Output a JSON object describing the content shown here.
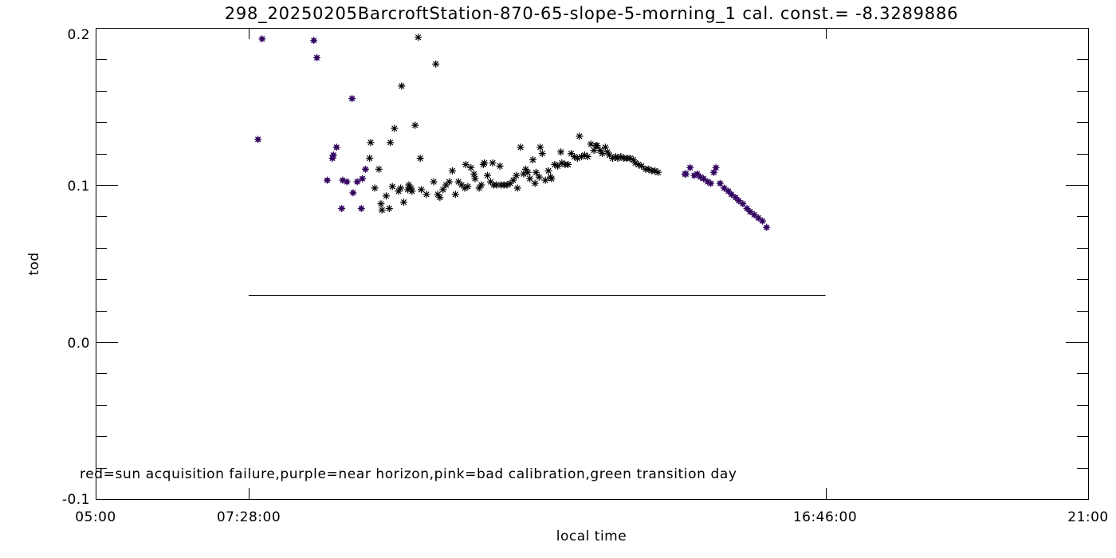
{
  "chart_data": {
    "type": "scatter",
    "title": "298_20250205BarcroftStation-870-65-slope-5-morning_1 cal. const.= -8.3289886",
    "xlabel": "local time",
    "ylabel": "tod",
    "xlim_hours": [
      5,
      21
    ],
    "ylim": [
      -0.1,
      0.2
    ],
    "x_tick_labels": [
      "05:00",
      "07:28:00",
      "16:46:00",
      "21:00"
    ],
    "x_tick_hours": [
      5,
      7.4667,
      16.7667,
      21
    ],
    "y_tick_labels": [
      "-0.1",
      "0.0",
      "0.1",
      "0.2"
    ],
    "y_tick_values": [
      -0.1,
      0.0,
      0.1,
      0.2
    ],
    "grid": false,
    "annotation": "red=sun acquisition failure,purple=near horizon,pink=bad calibration,green transition day",
    "colors": {
      "normal": "#000000",
      "near_horizon": "#7b1fd6"
    },
    "reference_line": {
      "x": [
        "07:28:00",
        "16:46:00"
      ],
      "y": 0.03
    },
    "series": [
      {
        "flag": "near_horizon",
        "color": "#7b1fd6",
        "marker": "asterisk",
        "points": [
          [
            "07:37",
            0.129
          ],
          [
            "07:41",
            0.193
          ],
          [
            "08:31",
            0.192
          ],
          [
            "08:34",
            0.181
          ],
          [
            "08:44",
            0.103
          ],
          [
            "08:49",
            0.117
          ],
          [
            "08:50",
            0.119
          ],
          [
            "08:53",
            0.124
          ],
          [
            "08:58",
            0.085
          ],
          [
            "08:59",
            0.103
          ],
          [
            "09:03",
            0.102
          ],
          [
            "09:08",
            0.155
          ],
          [
            "09:09",
            0.095
          ],
          [
            "09:13",
            0.102
          ],
          [
            "09:17",
            0.085
          ],
          [
            "09:18",
            0.104
          ],
          [
            "09:21",
            0.11
          ],
          [
            "14:30",
            0.107
          ],
          [
            "14:31",
            0.107
          ],
          [
            "14:35",
            0.111
          ],
          [
            "14:39",
            0.106
          ],
          [
            "14:42",
            0.107
          ],
          [
            "14:45",
            0.105
          ],
          [
            "14:48",
            0.104
          ],
          [
            "14:52",
            0.102
          ],
          [
            "14:55",
            0.101
          ],
          [
            "14:58",
            0.108
          ],
          [
            "15:00",
            0.111
          ],
          [
            "15:04",
            0.101
          ],
          [
            "15:08",
            0.098
          ],
          [
            "15:12",
            0.096
          ],
          [
            "15:15",
            0.094
          ],
          [
            "15:19",
            0.092
          ],
          [
            "15:22",
            0.09
          ],
          [
            "15:26",
            0.088
          ],
          [
            "15:30",
            0.085
          ],
          [
            "15:33",
            0.083
          ],
          [
            "15:37",
            0.081
          ],
          [
            "15:41",
            0.079
          ],
          [
            "15:45",
            0.077
          ],
          [
            "15:49",
            0.073
          ]
        ]
      },
      {
        "flag": "normal",
        "color": "#000000",
        "marker": "asterisk",
        "points": [
          [
            "09:25",
            0.117
          ],
          [
            "09:26",
            0.127
          ],
          [
            "09:30",
            0.098
          ],
          [
            "09:34",
            0.11
          ],
          [
            "09:36",
            0.088
          ],
          [
            "09:37",
            0.084
          ],
          [
            "09:41",
            0.093
          ],
          [
            "09:44",
            0.085
          ],
          [
            "09:45",
            0.127
          ],
          [
            "09:47",
            0.099
          ],
          [
            "09:49",
            0.136
          ],
          [
            "09:53",
            0.096
          ],
          [
            "09:55",
            0.098
          ],
          [
            "09:56",
            0.163
          ],
          [
            "09:58",
            0.089
          ],
          [
            "10:02",
            0.097
          ],
          [
            "10:03",
            0.1
          ],
          [
            "10:05",
            0.098
          ],
          [
            "10:06",
            0.096
          ],
          [
            "10:09",
            0.138
          ],
          [
            "10:12",
            0.194
          ],
          [
            "10:14",
            0.117
          ],
          [
            "10:15",
            0.097
          ],
          [
            "10:20",
            0.094
          ],
          [
            "10:27",
            0.102
          ],
          [
            "10:29",
            0.177
          ],
          [
            "10:31",
            0.094
          ],
          [
            "10:33",
            0.092
          ],
          [
            "10:36",
            0.097
          ],
          [
            "10:39",
            0.1
          ],
          [
            "10:42",
            0.102
          ],
          [
            "10:45",
            0.109
          ],
          [
            "10:48",
            0.094
          ],
          [
            "10:51",
            0.102
          ],
          [
            "10:54",
            0.1
          ],
          [
            "10:57",
            0.098
          ],
          [
            "10:58",
            0.113
          ],
          [
            "11:00",
            0.099
          ],
          [
            "11:03",
            0.111
          ],
          [
            "11:06",
            0.107
          ],
          [
            "11:07",
            0.104
          ],
          [
            "11:11",
            0.098
          ],
          [
            "11:13",
            0.1
          ],
          [
            "11:15",
            0.113
          ],
          [
            "11:16",
            0.114
          ],
          [
            "11:19",
            0.106
          ],
          [
            "11:22",
            0.102
          ],
          [
            "11:24",
            0.114
          ],
          [
            "11:25",
            0.1
          ],
          [
            "11:28",
            0.1
          ],
          [
            "11:31",
            0.112
          ],
          [
            "11:32",
            0.1
          ],
          [
            "11:35",
            0.1
          ],
          [
            "11:38",
            0.1
          ],
          [
            "11:41",
            0.101
          ],
          [
            "11:44",
            0.103
          ],
          [
            "11:47",
            0.106
          ],
          [
            "11:48",
            0.098
          ],
          [
            "11:51",
            0.124
          ],
          [
            "11:54",
            0.107
          ],
          [
            "11:56",
            0.11
          ],
          [
            "11:58",
            0.108
          ],
          [
            "12:00",
            0.104
          ],
          [
            "12:03",
            0.116
          ],
          [
            "12:05",
            0.101
          ],
          [
            "12:06",
            0.108
          ],
          [
            "12:09",
            0.105
          ],
          [
            "12:10",
            0.124
          ],
          [
            "12:12",
            0.12
          ],
          [
            "12:15",
            0.103
          ],
          [
            "12:18",
            0.109
          ],
          [
            "12:20",
            0.105
          ],
          [
            "12:21",
            0.104
          ],
          [
            "12:24",
            0.113
          ],
          [
            "12:27",
            0.112
          ],
          [
            "12:30",
            0.121
          ],
          [
            "12:31",
            0.114
          ],
          [
            "12:34",
            0.113
          ],
          [
            "12:37",
            0.113
          ],
          [
            "12:40",
            0.12
          ],
          [
            "12:43",
            0.118
          ],
          [
            "12:46",
            0.117
          ],
          [
            "12:48",
            0.131
          ],
          [
            "12:50",
            0.118
          ],
          [
            "12:53",
            0.119
          ],
          [
            "12:56",
            0.118
          ],
          [
            "12:59",
            0.126
          ],
          [
            "13:02",
            0.122
          ],
          [
            "13:04",
            0.125
          ],
          [
            "13:05",
            0.125
          ],
          [
            "13:08",
            0.122
          ],
          [
            "13:10",
            0.12
          ],
          [
            "13:13",
            0.124
          ],
          [
            "13:15",
            0.121
          ],
          [
            "13:17",
            0.119
          ],
          [
            "13:20",
            0.117
          ],
          [
            "13:23",
            0.118
          ],
          [
            "13:25",
            0.117
          ],
          [
            "13:28",
            0.118
          ],
          [
            "13:31",
            0.117
          ],
          [
            "13:34",
            0.117
          ],
          [
            "13:37",
            0.117
          ],
          [
            "13:40",
            0.116
          ],
          [
            "13:42",
            0.114
          ],
          [
            "13:45",
            0.113
          ],
          [
            "13:48",
            0.112
          ],
          [
            "13:52",
            0.11
          ],
          [
            "13:55",
            0.11
          ],
          [
            "13:58",
            0.109
          ],
          [
            "14:01",
            0.109
          ],
          [
            "14:04",
            0.108
          ]
        ]
      }
    ]
  }
}
